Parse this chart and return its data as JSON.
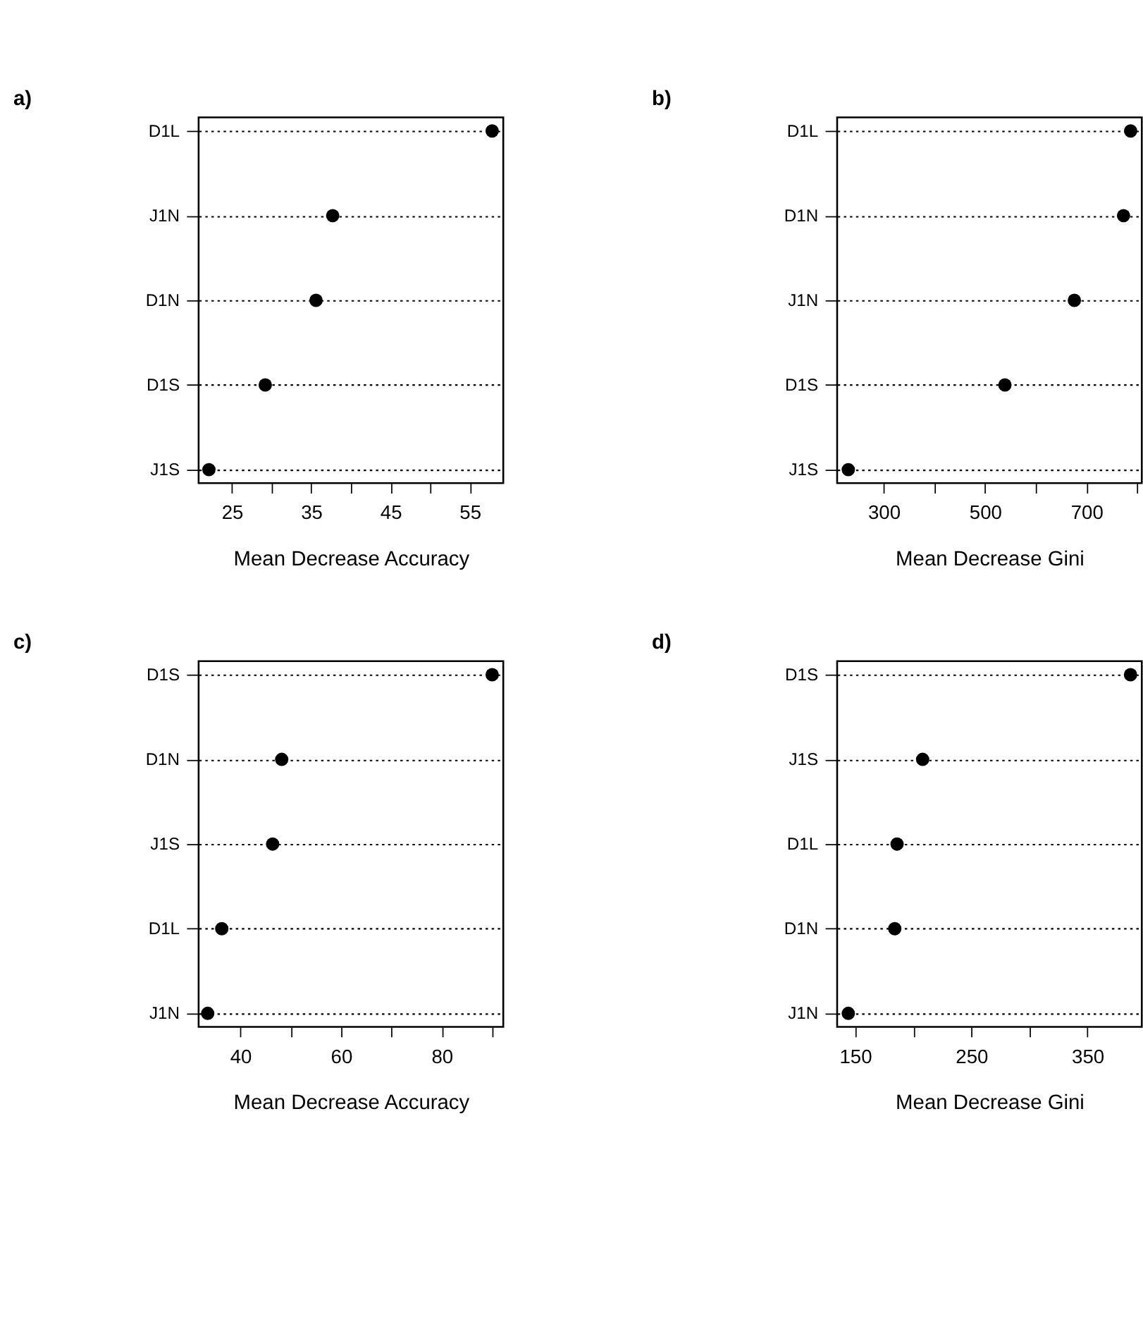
{
  "chart_data": [
    {
      "type": "scatter",
      "title": "a)",
      "xlabel": "Mean Decrease Accuracy",
      "orientation": "horizontal",
      "categories": [
        "D1L",
        "J1N",
        "D1N",
        "D1S",
        "J1S"
      ],
      "values": [
        57.8,
        37.7,
        35.6,
        29.2,
        22.1
      ],
      "color": "#000000",
      "marker": "circle",
      "grid": "y",
      "line_style": "dotted",
      "xlim": [
        20.8,
        59.2
      ],
      "xticks": [
        25,
        {
          "value": 30,
          "label": null
        },
        35,
        {
          "value": 40,
          "label": null
        },
        45,
        {
          "value": 50,
          "label": null
        },
        55
      ]
    },
    {
      "type": "scatter",
      "title": "b)",
      "xlabel": "Mean Decrease Gini",
      "orientation": "horizontal",
      "categories": [
        "D1L",
        "D1N",
        "J1N",
        "D1S",
        "J1S"
      ],
      "values": [
        787,
        773,
        676,
        539,
        230
      ],
      "color": "#000000",
      "marker": "circle",
      "grid": "y",
      "line_style": "dotted",
      "xlim": [
        208,
        809
      ],
      "xticks": [
        300,
        {
          "value": 400,
          "label": null
        },
        500,
        {
          "value": 600,
          "label": null
        },
        700,
        {
          "value": 800,
          "label": null
        }
      ]
    },
    {
      "type": "scatter",
      "title": "c)",
      "xlabel": "Mean Decrease Accuracy",
      "orientation": "horizontal",
      "categories": [
        "D1S",
        "D1N",
        "J1S",
        "D1L",
        "J1N"
      ],
      "values": [
        90,
        48.2,
        46.4,
        36.3,
        33.5
      ],
      "color": "#000000",
      "marker": "circle",
      "grid": "y",
      "line_style": "dotted",
      "xlim": [
        31.7,
        92.2
      ],
      "xticks": [
        40,
        {
          "value": 50,
          "label": null
        },
        60,
        {
          "value": 70,
          "label": null
        },
        80,
        {
          "value": 90,
          "label": null
        }
      ]
    },
    {
      "type": "scatter",
      "title": "d)",
      "xlabel": "Mean Decrease Gini",
      "orientation": "horizontal",
      "categories": [
        "D1S",
        "J1S",
        "D1L",
        "D1N",
        "J1N"
      ],
      "values": [
        387,
        208,
        186,
        184,
        144
      ],
      "color": "#000000",
      "marker": "circle",
      "grid": "y",
      "line_style": "dotted",
      "xlim": [
        134.4,
        396.7
      ],
      "xticks": [
        150,
        {
          "value": 200,
          "label": null
        },
        250,
        {
          "value": 300,
          "label": null
        },
        350
      ]
    }
  ]
}
